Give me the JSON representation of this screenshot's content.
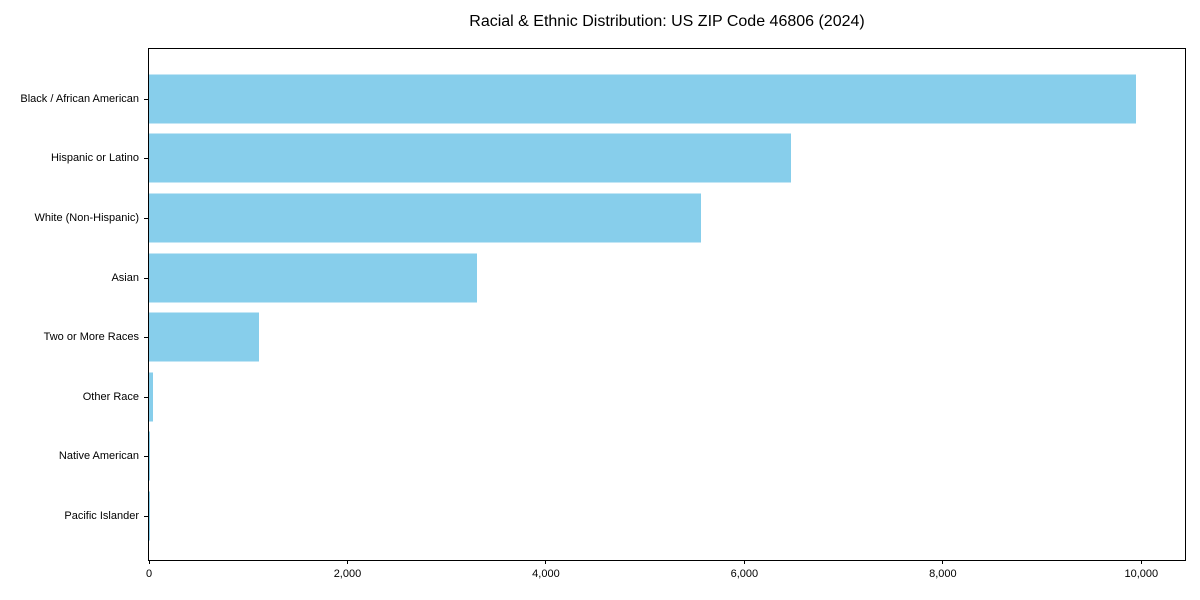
{
  "chart_data": {
    "type": "bar",
    "orientation": "horizontal",
    "title": "Racial & Ethnic Distribution: US ZIP Code 46806 (2024)",
    "categories": [
      "Black / African American",
      "Hispanic or Latino",
      "White (Non-Hispanic)",
      "Asian",
      "Two or More Races",
      "Other Race",
      "Native American",
      "Pacific Islander"
    ],
    "values": [
      9950,
      6470,
      5560,
      3310,
      1110,
      40,
      10,
      5
    ],
    "xlabel": "",
    "ylabel": "",
    "xlim": [
      0,
      10440
    ],
    "x_ticks": [
      0,
      2000,
      4000,
      6000,
      8000,
      10000
    ],
    "x_tick_labels": [
      "0",
      "2,000",
      "4,000",
      "6,000",
      "8,000",
      "10,000"
    ],
    "bar_color": "#87CEEB",
    "grid": false,
    "legend_position": "none",
    "spines": "full-box"
  }
}
